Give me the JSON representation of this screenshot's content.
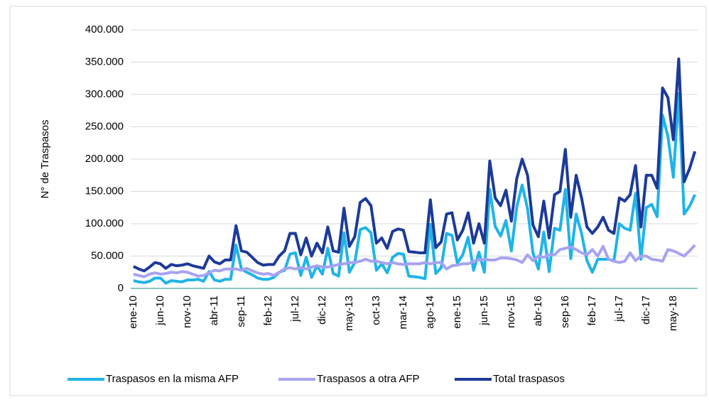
{
  "chart_data": {
    "type": "line",
    "y_label": "N° de Traspasos",
    "categories": [
      "ene-10",
      null,
      null,
      null,
      null,
      "jun-10",
      null,
      null,
      null,
      null,
      "nov-10",
      null,
      null,
      null,
      null,
      "abr-11",
      null,
      null,
      null,
      null,
      "sep-11",
      null,
      null,
      null,
      null,
      "feb-12",
      null,
      null,
      null,
      null,
      "jul-12",
      null,
      null,
      null,
      null,
      "dic-12",
      null,
      null,
      null,
      null,
      "may-13",
      null,
      null,
      null,
      null,
      "oct-13",
      null,
      null,
      null,
      null,
      "mar-14",
      null,
      null,
      null,
      null,
      "ago-14",
      null,
      null,
      null,
      null,
      "ene-15",
      null,
      null,
      null,
      null,
      "jun-15",
      null,
      null,
      null,
      null,
      "nov-15",
      null,
      null,
      null,
      null,
      "abr-16",
      null,
      null,
      null,
      null,
      "sep-16",
      null,
      null,
      null,
      null,
      "feb-17",
      null,
      null,
      null,
      null,
      "jul-17",
      null,
      null,
      null,
      null,
      "dic-17",
      null,
      null,
      null,
      null,
      "may-18",
      null,
      null,
      null,
      null
    ],
    "series": [
      {
        "name": "Traspasos en la misma AFP",
        "color": "#1fb4e8",
        "values": [
          12000,
          10000,
          9000,
          11000,
          16000,
          16000,
          8000,
          12000,
          11000,
          10000,
          13000,
          13000,
          14000,
          11000,
          26000,
          13000,
          11000,
          14000,
          14000,
          67000,
          30000,
          25000,
          21000,
          16000,
          14000,
          14000,
          17000,
          25000,
          28000,
          53000,
          55000,
          20000,
          48000,
          17000,
          35000,
          22000,
          62000,
          23000,
          19000,
          86000,
          25000,
          40000,
          91000,
          94000,
          86000,
          28000,
          38000,
          24000,
          48000,
          54000,
          53000,
          19000,
          18000,
          17000,
          15000,
          99000,
          23000,
          32000,
          85000,
          82000,
          39000,
          52000,
          79000,
          28000,
          56000,
          25000,
          153000,
          96000,
          81000,
          105000,
          58000,
          126000,
          160000,
          123000,
          55000,
          30000,
          87000,
          26000,
          93000,
          90000,
          153000,
          46000,
          115000,
          85000,
          43000,
          25000,
          45000,
          45000,
          45000,
          43000,
          100000,
          93000,
          90000,
          147000,
          45000,
          125000,
          130000,
          111000,
          268000,
          235000,
          172000,
          301000,
          115000,
          127000,
          145000
        ]
      },
      {
        "name": "Traspasos a otra AFP",
        "color": "#a7a2f0",
        "values": [
          22000,
          20000,
          18000,
          22000,
          24000,
          22000,
          23000,
          25000,
          24000,
          26000,
          25000,
          22000,
          19000,
          20000,
          24000,
          28000,
          27000,
          30000,
          30000,
          30000,
          28000,
          31000,
          27000,
          24000,
          22000,
          23000,
          20000,
          25000,
          30000,
          32000,
          30000,
          32000,
          30000,
          33000,
          35000,
          33000,
          33000,
          35000,
          37000,
          38000,
          40000,
          40000,
          42000,
          45000,
          42000,
          42000,
          40000,
          38000,
          40000,
          38000,
          37000,
          38000,
          38000,
          38000,
          40000,
          38000,
          40000,
          40000,
          30000,
          35000,
          36000,
          38000,
          38000,
          42000,
          44000,
          45000,
          44000,
          44000,
          47000,
          47000,
          46000,
          44000,
          40000,
          52000,
          43000,
          50000,
          48000,
          52000,
          52000,
          60000,
          62000,
          64000,
          60000,
          55000,
          52000,
          60000,
          50000,
          65000,
          45000,
          42000,
          40000,
          42000,
          55000,
          43000,
          50000,
          50000,
          45000,
          44000,
          42000,
          60000,
          58000,
          54000,
          50000,
          58000,
          67000
        ]
      },
      {
        "name": "Total traspasos",
        "color": "#1c3a98",
        "values": [
          34000,
          30000,
          27000,
          33000,
          40000,
          38000,
          31000,
          37000,
          35000,
          36000,
          38000,
          35000,
          33000,
          31000,
          50000,
          41000,
          38000,
          44000,
          44000,
          97000,
          58000,
          56000,
          48000,
          40000,
          36000,
          37000,
          37000,
          50000,
          58000,
          85000,
          85000,
          52000,
          78000,
          50000,
          70000,
          55000,
          95000,
          58000,
          56000,
          124000,
          65000,
          80000,
          133000,
          139000,
          128000,
          70000,
          78000,
          62000,
          88000,
          92000,
          90000,
          57000,
          56000,
          55000,
          55000,
          137000,
          63000,
          72000,
          115000,
          117000,
          75000,
          90000,
          117000,
          70000,
          100000,
          70000,
          197000,
          140000,
          128000,
          152000,
          104000,
          170000,
          200000,
          175000,
          98000,
          80000,
          135000,
          78000,
          145000,
          150000,
          215000,
          110000,
          175000,
          140000,
          95000,
          85000,
          95000,
          110000,
          90000,
          85000,
          140000,
          135000,
          145000,
          190000,
          95000,
          175000,
          175000,
          155000,
          310000,
          295000,
          230000,
          355000,
          165000,
          185000,
          212000
        ]
      }
    ],
    "ylim": [
      0,
      400000
    ],
    "yticks": [
      0,
      {
        "value": 50000,
        "label": "50.000"
      },
      {
        "value": 100000,
        "label": "100.000"
      },
      {
        "value": 150000,
        "label": "150.000"
      },
      {
        "value": 200000,
        "label": "200.000"
      },
      {
        "value": 250000,
        "label": "250.000"
      },
      {
        "value": 300000,
        "label": "300.000"
      },
      {
        "value": 350000,
        "label": "350.000"
      },
      {
        "value": 400000,
        "label": "400.000"
      }
    ],
    "grid": true,
    "legend": "bottom",
    "axis_color": "#5bb5a8"
  }
}
